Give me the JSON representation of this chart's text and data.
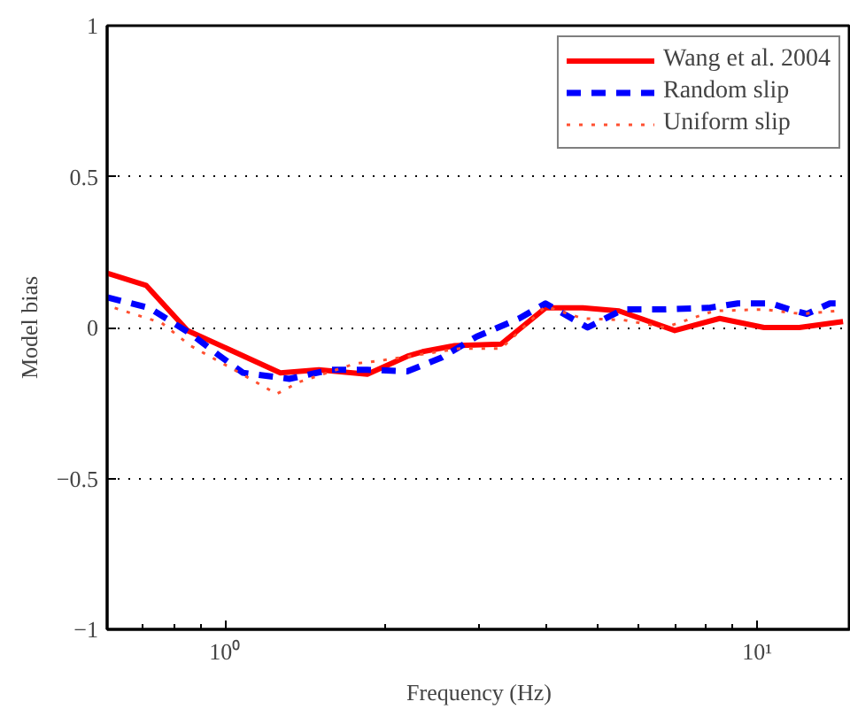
{
  "chart_data": {
    "type": "line",
    "xlabel": "Frequency (Hz)",
    "ylabel": "Model bias",
    "log": "x",
    "xlim": [
      0.6,
      15
    ],
    "ylim": [
      -1,
      1
    ],
    "xticks": [
      {
        "value": 1,
        "label": "10⁰"
      },
      {
        "value": 10,
        "label": "10¹"
      }
    ],
    "yticks": [
      {
        "value": -1,
        "label": "−1"
      },
      {
        "value": -0.5,
        "label": "−0.5"
      },
      0,
      0.5,
      1
    ],
    "grid": "y",
    "legend": "top right",
    "series": [
      {
        "name": "Wang et al. 2004",
        "color": "#ff0000",
        "line_style": "solid",
        "x": [
          0.6,
          0.71,
          0.85,
          1.27,
          1.5,
          1.85,
          2.2,
          2.35,
          2.7,
          3.3,
          4.0,
          4.7,
          5.5,
          7.0,
          8.5,
          10.3,
          12.0,
          14.5
        ],
        "values": [
          0.18,
          0.14,
          -0.01,
          -0.15,
          -0.14,
          -0.155,
          -0.095,
          -0.08,
          -0.06,
          -0.055,
          0.065,
          0.065,
          0.055,
          -0.01,
          0.03,
          0.0,
          0.0,
          0.02
        ]
      },
      {
        "name": "Random slip",
        "color": "#0000ff",
        "line_style": "dashed",
        "x": [
          0.6,
          0.72,
          0.86,
          0.97,
          1.08,
          1.32,
          1.58,
          1.85,
          2.2,
          2.55,
          2.97,
          3.57,
          4.0,
          4.8,
          5.6,
          6.7,
          8.1,
          9.2,
          10.6,
          11.5,
          12.4,
          13.7,
          14.5
        ],
        "values": [
          0.1,
          0.065,
          -0.02,
          -0.09,
          -0.15,
          -0.17,
          -0.14,
          -0.14,
          -0.145,
          -0.1,
          -0.03,
          0.03,
          0.08,
          0.0,
          0.06,
          0.06,
          0.065,
          0.08,
          0.08,
          0.06,
          0.045,
          0.08,
          0.08
        ]
      },
      {
        "name": "Uniform slip",
        "color": "#ff5030",
        "line_style": "dotted",
        "x": [
          0.62,
          0.76,
          0.86,
          1.04,
          1.25,
          1.38,
          1.75,
          1.95,
          2.75,
          3.3,
          4.0,
          4.7,
          5.6,
          6.7,
          8.3,
          10.3,
          12.1,
          14.1
        ],
        "values": [
          0.065,
          0.015,
          -0.06,
          -0.14,
          -0.22,
          -0.18,
          -0.12,
          -0.11,
          -0.07,
          -0.07,
          0.07,
          0.03,
          0.025,
          0.0,
          0.055,
          0.06,
          0.045,
          0.055
        ]
      }
    ]
  }
}
